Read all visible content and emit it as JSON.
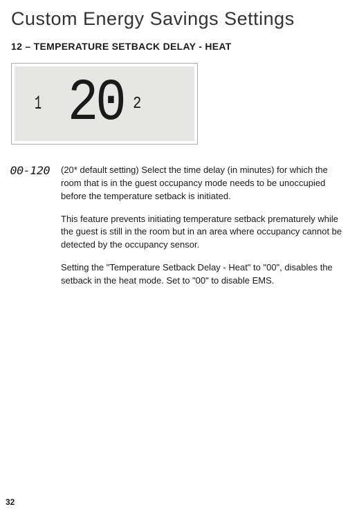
{
  "page": {
    "title": "Custom Energy Savings Settings",
    "number": "32"
  },
  "section": {
    "heading": "12 – TEMPERATURE SETBACK DELAY - HEAT"
  },
  "lcd": {
    "small_left": "1",
    "large": "20",
    "small_right": "2",
    "bg_color": "#e6e6e4",
    "border_color": "#aaaaaa"
  },
  "setting": {
    "range": "00-120",
    "para1": "(20* default setting) Select the time delay (in minutes) for which the room that is in the guest occupancy mode needs to be unoccupied before the temperature setback is initiated.",
    "para2": "This feature prevents initiating temperature setback prematurely while the guest is still in the room but in an area where occupancy cannot be detected by the occupancy sensor.",
    "para3": "Setting the \"Temperature Setback Delay - Heat\" to \"00\", disables the setback in the heat mode. Set to \"00\" to disable EMS."
  }
}
